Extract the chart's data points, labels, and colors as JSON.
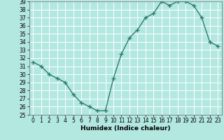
{
  "x": [
    0,
    1,
    2,
    3,
    4,
    5,
    6,
    7,
    8,
    9,
    10,
    11,
    12,
    13,
    14,
    15,
    16,
    17,
    18,
    19,
    20,
    21,
    22,
    23
  ],
  "y": [
    31.5,
    31.0,
    30.0,
    29.5,
    29.0,
    27.5,
    26.5,
    26.0,
    25.5,
    25.5,
    29.5,
    32.5,
    34.5,
    35.5,
    37.0,
    37.5,
    39.0,
    38.5,
    39.0,
    39.0,
    38.5,
    37.0,
    34.0,
    33.5
  ],
  "line_color": "#2d7d6e",
  "marker": "+",
  "markersize": 4,
  "linewidth": 1.0,
  "background_color": "#b3e8e0",
  "grid_color": "#ffffff",
  "xlabel": "Humidex (Indice chaleur)",
  "ylim": [
    25,
    39
  ],
  "xlim": [
    -0.5,
    23.5
  ],
  "yticks": [
    25,
    26,
    27,
    28,
    29,
    30,
    31,
    32,
    33,
    34,
    35,
    36,
    37,
    38,
    39
  ],
  "xticks": [
    0,
    1,
    2,
    3,
    4,
    5,
    6,
    7,
    8,
    9,
    10,
    11,
    12,
    13,
    14,
    15,
    16,
    17,
    18,
    19,
    20,
    21,
    22,
    23
  ],
  "label_fontsize": 6.5,
  "tick_fontsize": 5.5
}
